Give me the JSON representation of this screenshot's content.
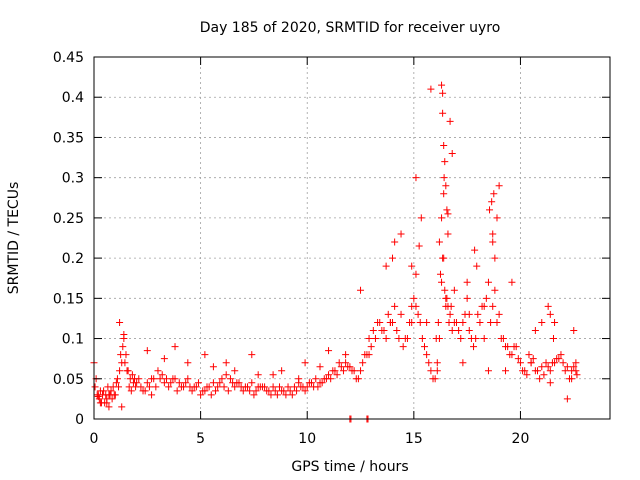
{
  "chart_data": {
    "type": "scatter",
    "title": "Day 185 of 2020, SRMTID for receiver uyro",
    "xlabel": "GPS time / hours",
    "ylabel": "SRMTID / TECUs",
    "xlim": [
      0,
      24.2
    ],
    "ylim": [
      0,
      0.45
    ],
    "x_ticks": [
      0,
      5,
      10,
      15,
      20
    ],
    "x_tick_labels": [
      "0",
      "5",
      "10",
      "15",
      "20"
    ],
    "y_ticks": [
      0,
      0.05,
      0.1,
      0.15,
      0.2,
      0.25,
      0.3,
      0.35,
      0.4,
      0.45
    ],
    "y_tick_labels": [
      "0",
      "0.05",
      "0.1",
      "0.15",
      "0.2",
      "0.25",
      "0.3",
      "0.35",
      "0.4",
      "0.45"
    ],
    "grid": true,
    "marker": "+",
    "color": "#ff0000",
    "series": [
      {
        "name": "SRMTID",
        "x": [
          0.0,
          0.1,
          0.2,
          0.3,
          0.4,
          0.5,
          0.6,
          0.7,
          0.8,
          0.9,
          1.0,
          1.1,
          1.2,
          1.3,
          1.4,
          1.5,
          1.6,
          1.7,
          1.8,
          1.9,
          2.0,
          2.2,
          2.4,
          2.6,
          2.8,
          3.0,
          3.2,
          3.4,
          3.6,
          3.8,
          4.0,
          4.2,
          4.4,
          4.6,
          4.8,
          5.0,
          5.2,
          5.4,
          5.6,
          5.8,
          6.0,
          6.2,
          6.4,
          6.6,
          6.8,
          7.0,
          7.2,
          7.4,
          7.6,
          7.8,
          8.0,
          8.2,
          8.4,
          8.6,
          8.8,
          9.0,
          9.2,
          9.4,
          9.6,
          9.8,
          10.0,
          10.2,
          10.4,
          10.6,
          10.8,
          11.0,
          11.2,
          11.4,
          11.6,
          11.8,
          12.0,
          12.2,
          12.4,
          12.6,
          12.8,
          13.0,
          13.2,
          13.4,
          13.6,
          13.8,
          14.0,
          14.2,
          14.4,
          14.6,
          14.8,
          15.0,
          15.2,
          15.4,
          15.6,
          15.8,
          16.0,
          16.1,
          16.2,
          16.3,
          16.4,
          16.5,
          16.6,
          16.7,
          16.8,
          17.0,
          17.2,
          17.4,
          17.6,
          17.8,
          18.0,
          18.2,
          18.4,
          18.6,
          18.8,
          19.0,
          19.2,
          19.4,
          19.6,
          19.8,
          20.0,
          20.2,
          20.4,
          20.6,
          20.8,
          21.0,
          21.2,
          21.4,
          21.6,
          21.8,
          22.0,
          22.2,
          22.4,
          22.6,
          0.05,
          0.15,
          0.25,
          0.35,
          0.45,
          0.55,
          0.65,
          0.75,
          0.85,
          0.95,
          1.05,
          1.15,
          1.25,
          1.35,
          1.45,
          1.55,
          1.65,
          1.75,
          1.85,
          1.95,
          2.1,
          2.3,
          2.5,
          2.7,
          2.9,
          3.1,
          3.3,
          3.5,
          3.7,
          3.9,
          4.1,
          4.3,
          4.5,
          4.7,
          4.9,
          5.1,
          5.3,
          5.5,
          5.7,
          5.9,
          6.1,
          6.3,
          6.5,
          6.7,
          6.9,
          7.1,
          7.3,
          7.5,
          7.7,
          7.9,
          8.1,
          8.3,
          8.5,
          8.7,
          8.9,
          9.1,
          9.3,
          9.5,
          9.7,
          9.9,
          10.1,
          10.3,
          10.5,
          10.7,
          10.9,
          11.1,
          11.3,
          11.5,
          11.7,
          11.9,
          12.1,
          12.3,
          12.5,
          12.7,
          12.9,
          13.1,
          13.3,
          13.5,
          13.7,
          13.9,
          14.1,
          14.3,
          14.5,
          14.7,
          14.9,
          15.1,
          15.3,
          15.5,
          15.7,
          15.9,
          16.05,
          16.15,
          16.25,
          16.35,
          16.45,
          16.55,
          16.65,
          16.75,
          16.9,
          17.1,
          17.3,
          17.5,
          17.7,
          17.9,
          18.1,
          18.3,
          18.5,
          18.7,
          18.9,
          19.1,
          19.3,
          19.5,
          19.7,
          19.9,
          20.1,
          20.3,
          20.5,
          20.7,
          20.9,
          21.1,
          21.3,
          21.5,
          21.7,
          21.9,
          22.1,
          22.3,
          22.5,
          22.65,
          0.3,
          0.7,
          1.2,
          1.4,
          2.5,
          3.3,
          4.4,
          5.6,
          6.6,
          7.7,
          8.8,
          9.9,
          11.0,
          12.5,
          13.7,
          14.4,
          15.1,
          15.8,
          16.2,
          16.4,
          16.6,
          17.3,
          18.5,
          19.3,
          20.5,
          21.4,
          22.4,
          0.2,
          0.6,
          1.3,
          2.7,
          3.8,
          5.2,
          6.2,
          7.4,
          8.4,
          9.6,
          10.6,
          11.8,
          12.9,
          13.9,
          14.9,
          15.6,
          16.1,
          16.3,
          16.5,
          16.9,
          17.6,
          18.3,
          18.7,
          19.6,
          20.7,
          21.6,
          22.2,
          16.3,
          16.35,
          16.4,
          16.45,
          16.5,
          16.55,
          16.6,
          16.7,
          16.8,
          16.35,
          16.42,
          18.65,
          18.7,
          18.8,
          18.9,
          19.0,
          18.55,
          18.75,
          17.85,
          17.95,
          15.25,
          15.35,
          14.0,
          14.1,
          14.9,
          15.1,
          17.5,
          12.0,
          12.05,
          12.8,
          12.85,
          21.4,
          21.3,
          21.55,
          22.5,
          22.6,
          21.0
        ],
        "y": [
          0.07,
          0.05,
          0.03,
          0.035,
          0.03,
          0.02,
          0.025,
          0.03,
          0.035,
          0.04,
          0.03,
          0.05,
          0.06,
          0.07,
          0.1,
          0.08,
          0.06,
          0.05,
          0.055,
          0.05,
          0.045,
          0.04,
          0.035,
          0.04,
          0.05,
          0.06,
          0.055,
          0.05,
          0.045,
          0.05,
          0.045,
          0.04,
          0.05,
          0.035,
          0.04,
          0.03,
          0.035,
          0.04,
          0.045,
          0.04,
          0.05,
          0.055,
          0.05,
          0.04,
          0.045,
          0.035,
          0.04,
          0.045,
          0.035,
          0.04,
          0.04,
          0.035,
          0.04,
          0.03,
          0.035,
          0.03,
          0.035,
          0.04,
          0.045,
          0.04,
          0.04,
          0.045,
          0.05,
          0.045,
          0.05,
          0.055,
          0.06,
          0.055,
          0.065,
          0.07,
          0.065,
          0.06,
          0.05,
          0.07,
          0.08,
          0.09,
          0.1,
          0.12,
          0.11,
          0.13,
          0.12,
          0.11,
          0.13,
          0.1,
          0.12,
          0.15,
          0.13,
          0.1,
          0.08,
          0.06,
          0.05,
          0.07,
          0.1,
          0.17,
          0.2,
          0.15,
          0.14,
          0.13,
          0.11,
          0.12,
          0.1,
          0.13,
          0.11,
          0.09,
          0.13,
          0.14,
          0.15,
          0.12,
          0.16,
          0.13,
          0.1,
          0.09,
          0.08,
          0.09,
          0.07,
          0.06,
          0.08,
          0.075,
          0.06,
          0.065,
          0.07,
          0.06,
          0.07,
          0.075,
          0.07,
          0.065,
          0.06,
          0.07,
          0.04,
          0.03,
          0.025,
          0.02,
          0.035,
          0.03,
          0.04,
          0.03,
          0.025,
          0.03,
          0.045,
          0.04,
          0.08,
          0.09,
          0.07,
          0.06,
          0.04,
          0.035,
          0.045,
          0.04,
          0.05,
          0.035,
          0.045,
          0.03,
          0.04,
          0.05,
          0.045,
          0.04,
          0.05,
          0.035,
          0.04,
          0.045,
          0.04,
          0.04,
          0.045,
          0.035,
          0.04,
          0.03,
          0.035,
          0.045,
          0.04,
          0.035,
          0.045,
          0.045,
          0.04,
          0.04,
          0.035,
          0.03,
          0.04,
          0.04,
          0.035,
          0.03,
          0.035,
          0.04,
          0.035,
          0.04,
          0.03,
          0.035,
          0.04,
          0.035,
          0.045,
          0.04,
          0.04,
          0.045,
          0.05,
          0.05,
          0.06,
          0.07,
          0.06,
          0.065,
          0.06,
          0.05,
          0.06,
          0.08,
          0.1,
          0.11,
          0.12,
          0.11,
          0.1,
          0.12,
          0.14,
          0.1,
          0.09,
          0.1,
          0.12,
          0.14,
          0.12,
          0.09,
          0.07,
          0.05,
          0.1,
          0.12,
          0.18,
          0.2,
          0.16,
          0.15,
          0.12,
          0.14,
          0.12,
          0.11,
          0.12,
          0.15,
          0.1,
          0.1,
          0.12,
          0.14,
          0.17,
          0.14,
          0.12,
          0.1,
          0.09,
          0.08,
          0.09,
          0.075,
          0.06,
          0.055,
          0.07,
          0.06,
          0.05,
          0.055,
          0.065,
          0.07,
          0.075,
          0.08,
          0.06,
          0.05,
          0.065,
          0.055,
          0.02,
          0.015,
          0.12,
          0.105,
          0.085,
          0.075,
          0.07,
          0.065,
          0.06,
          0.055,
          0.06,
          0.07,
          0.085,
          0.16,
          0.19,
          0.23,
          0.3,
          0.41,
          0.22,
          0.28,
          0.23,
          0.07,
          0.06,
          0.06,
          0.07,
          0.045,
          0.05,
          0.028,
          0.02,
          0.015,
          0.05,
          0.09,
          0.08,
          0.07,
          0.08,
          0.055,
          0.05,
          0.065,
          0.08,
          0.08,
          0.12,
          0.14,
          0.12,
          0.06,
          0.25,
          0.14,
          0.16,
          0.13,
          0.1,
          0.22,
          0.17,
          0.11,
          0.12,
          0.025,
          0.415,
          0.38,
          0.34,
          0.32,
          0.29,
          0.26,
          0.255,
          0.37,
          0.33,
          0.405,
          0.3,
          0.27,
          0.23,
          0.2,
          0.25,
          0.29,
          0.26,
          0.28,
          0.21,
          0.19,
          0.215,
          0.25,
          0.2,
          0.22,
          0.19,
          0.18,
          0.17,
          0.0,
          0.0,
          0.0,
          0.0,
          0.13,
          0.14,
          0.1,
          0.11,
          0.06,
          0.12
        ]
      }
    ]
  }
}
